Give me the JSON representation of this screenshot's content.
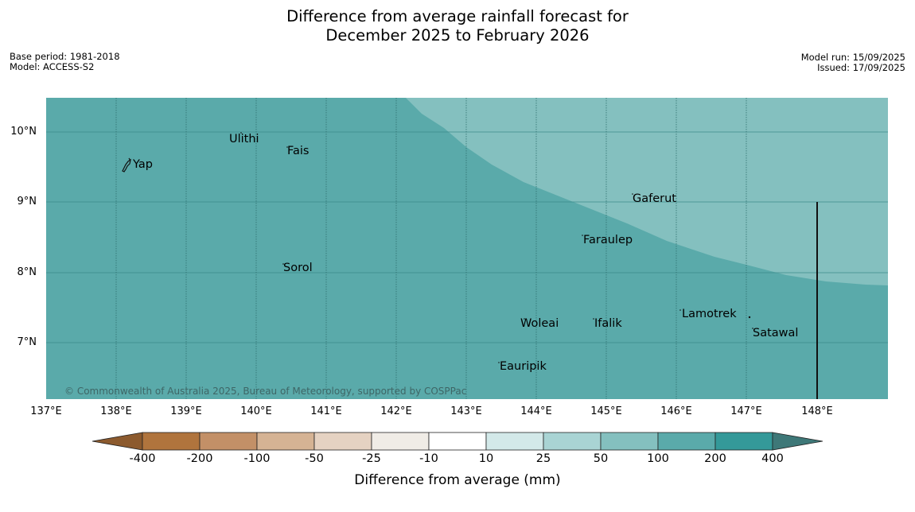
{
  "title_line1": "Difference from average rainfall forecast for",
  "title_line2": "December 2025 to February 2026",
  "meta_left": {
    "base_period": "Base period: 1981-2018",
    "model": "Model: ACCESS-S2"
  },
  "meta_right": {
    "model_run": "Model run: 15/09/2025",
    "issued": "Issued: 17/09/2025"
  },
  "latitude_labels": [
    "10°N",
    "9°N",
    "8°N",
    "7°N"
  ],
  "longitude_labels": [
    "137°E",
    "138°E",
    "139°E",
    "140°E",
    "141°E",
    "142°E",
    "143°E",
    "144°E",
    "145°E",
    "146°E",
    "147°E",
    "148°E"
  ],
  "places": [
    "Yap",
    "Ulithi",
    "Fais",
    "Gaferut",
    "Faraulep",
    "Sorol",
    "Woleai",
    "Ifalik",
    "Lamotrek",
    "Satawal",
    "Eauripik"
  ],
  "copyright": "© Commonwealth of Australia 2025, Bureau of Meteorology, supported by COSPPac",
  "colorbar": {
    "title": "Difference from average (mm)",
    "labels": [
      "-400",
      "-200",
      "-100",
      "-50",
      "-25",
      "-10",
      "10",
      "25",
      "50",
      "100",
      "200",
      "400"
    ],
    "colors": [
      "#8c5a2e",
      "#b0743d",
      "#c39067",
      "#d5b394",
      "#e5d2c2",
      "#f0ece6",
      "#ffffff",
      "#d3e9e9",
      "#a9d4d4",
      "#84c0bf",
      "#5aaaaa",
      "#349999",
      "#3e7878"
    ]
  },
  "map_colors": {
    "dominant": "#5aaaaa",
    "lighter_region": "#84c0bf"
  }
}
